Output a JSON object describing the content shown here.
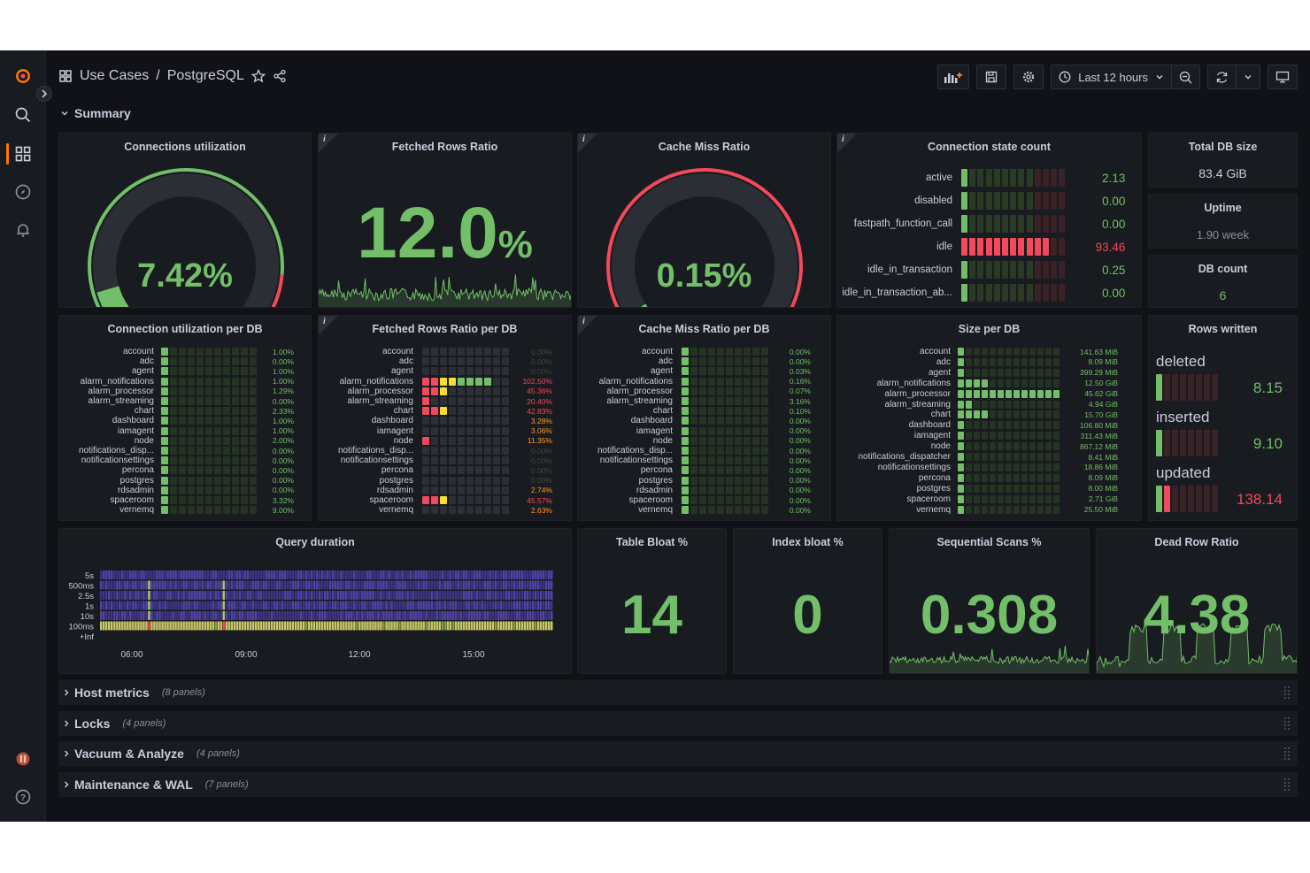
{
  "breadcrumb": {
    "folder": "Use Cases",
    "separator": "/",
    "dashboard": "PostgreSQL"
  },
  "toolbar": {
    "time_range": "Last 12 hours"
  },
  "rows": {
    "summary": "Summary",
    "collapsed": [
      {
        "title": "Host metrics",
        "count": "(8 panels)"
      },
      {
        "title": "Locks",
        "count": "(4 panels)"
      },
      {
        "title": "Vacuum & Analyze",
        "count": "(4 panels)"
      },
      {
        "title": "Maintenance & WAL",
        "count": "(7 panels)"
      }
    ]
  },
  "panels": {
    "connections_utilization": {
      "title": "Connections utilization",
      "value": "7.42%",
      "fraction": 0.0742
    },
    "fetched_rows_ratio": {
      "title": "Fetched Rows Ratio",
      "value": "12.0",
      "unit": "%"
    },
    "cache_miss_ratio": {
      "title": "Cache Miss Ratio",
      "value": "0.15%",
      "fraction": 0.0015
    },
    "connection_state_count": {
      "title": "Connection state count",
      "rows": [
        {
          "label": "active",
          "value": "2.13",
          "level": 1,
          "color": "#73bf69"
        },
        {
          "label": "disabled",
          "value": "0.00",
          "level": 1,
          "color": "#73bf69"
        },
        {
          "label": "fastpath_function_call",
          "value": "0.00",
          "level": 1,
          "color": "#73bf69"
        },
        {
          "label": "idle",
          "value": "93.46",
          "level": 11,
          "color": "#f2495c"
        },
        {
          "label": "idle_in_transaction",
          "value": "0.25",
          "level": 1,
          "color": "#73bf69"
        },
        {
          "label": "idle_in_transaction_ab...",
          "value": "0.00",
          "level": 1,
          "color": "#73bf69"
        }
      ]
    },
    "total_db_size": {
      "title": "Total DB size",
      "value": "83.4 GiB"
    },
    "uptime": {
      "title": "Uptime",
      "value": "1.90 week"
    },
    "db_count": {
      "title": "DB count",
      "value": "6"
    },
    "conn_util_per_db": {
      "title": "Connection utilization per DB",
      "rows": [
        {
          "label": "account",
          "value": "1.00%"
        },
        {
          "label": "adc",
          "value": "0.00%"
        },
        {
          "label": "agent",
          "value": "1.00%"
        },
        {
          "label": "alarm_notifications",
          "value": "1.00%"
        },
        {
          "label": "alarm_processor",
          "value": "1.29%"
        },
        {
          "label": "alarm_streaming",
          "value": "0.00%"
        },
        {
          "label": "chart",
          "value": "2.33%"
        },
        {
          "label": "dashboard",
          "value": "1.00%"
        },
        {
          "label": "iamagent",
          "value": "1.00%"
        },
        {
          "label": "node",
          "value": "2.00%"
        },
        {
          "label": "notifications_disp...",
          "value": "0.00%"
        },
        {
          "label": "notificationsettings",
          "value": "0.00%"
        },
        {
          "label": "percona",
          "value": "0.00%"
        },
        {
          "label": "postgres",
          "value": "0.00%"
        },
        {
          "label": "rdsadmin",
          "value": "0.00%"
        },
        {
          "label": "spaceroom",
          "value": "3.32%"
        },
        {
          "label": "vernemq",
          "value": "9.00%"
        }
      ]
    },
    "fetched_rows_per_db": {
      "title": "Fetched Rows Ratio per DB",
      "rows": [
        {
          "label": "account",
          "value": "0.00%",
          "cells": []
        },
        {
          "label": "adc",
          "value": "0.00%",
          "cells": []
        },
        {
          "label": "agent",
          "value": "0.00%",
          "cells": []
        },
        {
          "label": "alarm_notifications",
          "value": "102.50%",
          "cells": [
            "#f2495c",
            "#f2495c",
            "#fade2a",
            "#fade2a",
            "#73bf69",
            "#73bf69",
            "#73bf69",
            "#73bf69"
          ]
        },
        {
          "label": "alarm_processor",
          "value": "45.36%",
          "cells": [
            "#f2495c",
            "#f2495c",
            "#fade2a"
          ]
        },
        {
          "label": "alarm_streaming",
          "value": "20.40%",
          "cells": [
            "#f2495c"
          ]
        },
        {
          "label": "chart",
          "value": "42.83%",
          "cells": [
            "#f2495c",
            "#f2495c",
            "#fade2a"
          ]
        },
        {
          "label": "dashboard",
          "value": "3.28%",
          "cells": []
        },
        {
          "label": "iamagent",
          "value": "3.06%",
          "cells": []
        },
        {
          "label": "node",
          "value": "11.35%",
          "cells": [
            "#f2495c"
          ]
        },
        {
          "label": "notifications_disp...",
          "value": "0.00%",
          "cells": []
        },
        {
          "label": "notificationsettings",
          "value": "0.00%",
          "cells": []
        },
        {
          "label": "percona",
          "value": "0.00%",
          "cells": []
        },
        {
          "label": "postgres",
          "value": "0.00%",
          "cells": []
        },
        {
          "label": "rdsadmin",
          "value": "2.74%",
          "cells": []
        },
        {
          "label": "spaceroom",
          "value": "45.57%",
          "cells": [
            "#f2495c",
            "#f2495c",
            "#fade2a"
          ]
        },
        {
          "label": "vernemq",
          "value": "2.63%",
          "cells": []
        }
      ]
    },
    "cache_miss_per_db": {
      "title": "Cache Miss Ratio per DB",
      "rows": [
        {
          "label": "account",
          "value": "0.00%"
        },
        {
          "label": "adc",
          "value": "0.00%"
        },
        {
          "label": "agent",
          "value": "0.03%"
        },
        {
          "label": "alarm_notifications",
          "value": "0.16%"
        },
        {
          "label": "alarm_processor",
          "value": "0.07%"
        },
        {
          "label": "alarm_streaming",
          "value": "3.16%"
        },
        {
          "label": "chart",
          "value": "0.10%"
        },
        {
          "label": "dashboard",
          "value": "0.00%"
        },
        {
          "label": "iamagent",
          "value": "0.00%"
        },
        {
          "label": "node",
          "value": "0.00%"
        },
        {
          "label": "notifications_disp...",
          "value": "0.00%"
        },
        {
          "label": "notificationsettings",
          "value": "0.00%"
        },
        {
          "label": "percona",
          "value": "0.00%"
        },
        {
          "label": "postgres",
          "value": "0.00%"
        },
        {
          "label": "rdsadmin",
          "value": "0.00%"
        },
        {
          "label": "spaceroom",
          "value": "0.00%"
        },
        {
          "label": "vernemq",
          "value": "0.00%"
        }
      ]
    },
    "size_per_db": {
      "title": "Size per DB",
      "rows": [
        {
          "label": "account",
          "value": "141.63 MiB",
          "level": 1
        },
        {
          "label": "adc",
          "value": "8.09 MiB",
          "level": 1
        },
        {
          "label": "agent",
          "value": "399.29 MiB",
          "level": 1
        },
        {
          "label": "alarm_notifications",
          "value": "12.50 GiB",
          "level": 4
        },
        {
          "label": "alarm_processor",
          "value": "45.62 GiB",
          "level": 13
        },
        {
          "label": "alarm_streaming",
          "value": "4.94 GiB",
          "level": 2
        },
        {
          "label": "chart",
          "value": "15.70 GiB",
          "level": 4
        },
        {
          "label": "dashboard",
          "value": "106.80 MiB",
          "level": 1
        },
        {
          "label": "iamagent",
          "value": "311.43 MiB",
          "level": 1
        },
        {
          "label": "node",
          "value": "867.12 MiB",
          "level": 1
        },
        {
          "label": "notifications_dispatcher",
          "value": "8.41 MiB",
          "level": 1
        },
        {
          "label": "notificationsettings",
          "value": "18.86 MiB",
          "level": 1
        },
        {
          "label": "percona",
          "value": "8.09 MiB",
          "level": 1
        },
        {
          "label": "postgres",
          "value": "8.00 MiB",
          "level": 1
        },
        {
          "label": "spaceroom",
          "value": "2.71 GiB",
          "level": 1
        },
        {
          "label": "vernemq",
          "value": "25.50 MiB",
          "level": 1
        }
      ]
    },
    "rows_written": {
      "title": "Rows written",
      "items": [
        {
          "label": "deleted",
          "value": "8.15",
          "color": "#73bf69",
          "level": 1
        },
        {
          "label": "inserted",
          "value": "9.10",
          "color": "#73bf69",
          "level": 1
        },
        {
          "label": "updated",
          "value": "138.14",
          "color": "#f2495c",
          "level": 2
        }
      ]
    },
    "query_duration": {
      "title": "Query duration",
      "y_labels": [
        "5s",
        "500ms",
        "2.5s",
        "1s",
        "10s",
        "100ms",
        "+Inf"
      ],
      "x_labels": [
        "06:00",
        "09:00",
        "12:00",
        "15:00"
      ]
    },
    "table_bloat": {
      "title": "Table Bloat %",
      "value": "14"
    },
    "index_bloat": {
      "title": "Index bloat %",
      "value": "0"
    },
    "sequential_scans": {
      "title": "Sequential Scans %",
      "value": "0.308"
    },
    "dead_row_ratio": {
      "title": "Dead Row Ratio",
      "value": "4.38"
    }
  },
  "colors": {
    "green": "#73bf69",
    "red": "#f2495c",
    "yellow": "#fade2a",
    "orange": "#ff7800",
    "purple": "#4b3f9e"
  }
}
